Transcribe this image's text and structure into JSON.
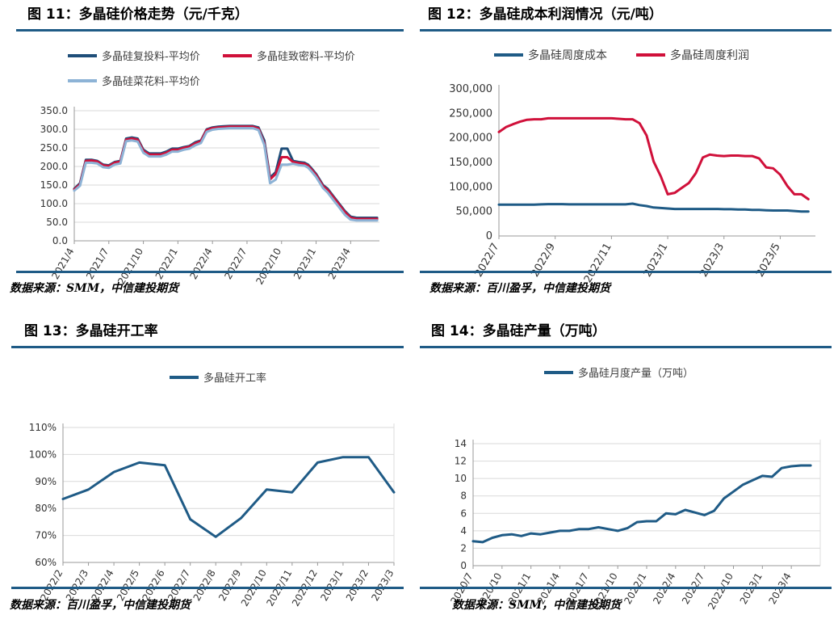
{
  "panels": [
    {
      "title": "图 11：多晶硅价格走势（元/千克）",
      "source": "数据来源：SMM，中信建投期货",
      "chart_data": {
        "type": "line",
        "ylim": [
          0,
          350
        ],
        "yticks": [
          "0.0",
          "50.0",
          "100.0",
          "150.0",
          "200.0",
          "250.0",
          "300.0",
          "350.0"
        ],
        "xticks": [
          "2021/4",
          "2021/7",
          "2021/10",
          "2022/1",
          "2022/4",
          "2022/7",
          "2022/10",
          "2023/1",
          "2023/4"
        ],
        "grid": true,
        "legend": "top",
        "series": [
          {
            "name": "多晶硅复投料-平均价",
            "color": "#1f4e79",
            "x": [
              0,
              0.5,
              1,
              1.5,
              2,
              2.5,
              3,
              3.5,
              4,
              4.5,
              5,
              5.5,
              6,
              6.5,
              7,
              7.5,
              8,
              8.5,
              9,
              9.5,
              10,
              10.5,
              11,
              11.5,
              12,
              12.5,
              13,
              13.5,
              14,
              14.5,
              15,
              15.5,
              16,
              16.5,
              17,
              17.5,
              18,
              18.5,
              19,
              19.5,
              20,
              20.3,
              20.6,
              21,
              21.3,
              21.6,
              22,
              22.5,
              23,
              23.5,
              24,
              24.5,
              25,
              25.5,
              26,
              26.3
            ],
            "values": [
              140,
              155,
              218,
              218,
              215,
              205,
              203,
              212,
              215,
              275,
              278,
              275,
              245,
              235,
              235,
              235,
              240,
              248,
              248,
              252,
              255,
              265,
              270,
              300,
              305,
              307,
              308,
              309,
              309,
              309,
              309,
              309,
              305,
              270,
              170,
              185,
              248,
              248,
              215,
              212,
              210,
              205,
              195,
              180,
              165,
              150,
              140,
              120,
              100,
              80,
              65,
              62,
              62,
              62,
              62,
              62
            ]
          },
          {
            "name": "多晶硅致密料-平均价",
            "color": "#d0103a",
            "x": [
              0,
              0.5,
              1,
              1.5,
              2,
              2.5,
              3,
              3.5,
              4,
              4.5,
              5,
              5.5,
              6,
              6.5,
              7,
              7.5,
              8,
              8.5,
              9,
              9.5,
              10,
              10.5,
              11,
              11.5,
              12,
              12.5,
              13,
              13.5,
              14,
              14.5,
              15,
              15.5,
              16,
              16.5,
              17,
              17.5,
              18,
              18.5,
              19,
              19.5,
              20,
              20.3,
              20.6,
              21,
              21.3,
              21.6,
              22,
              22.5,
              23,
              23.5,
              24,
              24.5,
              25,
              25.5,
              26,
              26.3
            ],
            "values": [
              138,
              152,
              215,
              216,
              213,
              203,
              201,
              210,
              213,
              272,
              275,
              272,
              242,
              232,
              232,
              232,
              237,
              245,
              245,
              250,
              253,
              262,
              268,
              298,
              303,
              305,
              306,
              307,
              307,
              307,
              307,
              307,
              302,
              262,
              165,
              180,
              225,
              225,
              212,
              209,
              207,
              202,
              192,
              177,
              162,
              147,
              137,
              117,
              97,
              77,
              62,
              59,
              59,
              59,
              59,
              59
            ]
          },
          {
            "name": "多晶硅菜花料-平均价",
            "color": "#8db3d6",
            "x": [
              0,
              0.5,
              1,
              1.5,
              2,
              2.5,
              3,
              3.5,
              4,
              4.5,
              5,
              5.5,
              6,
              6.5,
              7,
              7.5,
              8,
              8.5,
              9,
              9.5,
              10,
              10.5,
              11,
              11.5,
              12,
              12.5,
              13,
              13.5,
              14,
              14.5,
              15,
              15.5,
              16,
              16.5,
              17,
              17.5,
              18,
              18.5,
              19,
              19.5,
              20,
              20.3,
              20.6,
              21,
              21.3,
              21.6,
              22,
              22.5,
              23,
              23.5,
              24,
              24.5,
              25,
              25.5,
              26,
              26.3
            ],
            "values": [
              135,
              148,
              210,
              210,
              208,
              198,
              196,
              205,
              208,
              268,
              270,
              267,
              237,
              227,
              227,
              227,
              232,
              240,
              240,
              245,
              248,
              257,
              263,
              293,
              299,
              301,
              302,
              303,
              303,
              303,
              303,
              303,
              298,
              258,
              155,
              165,
              205,
              205,
              207,
              204,
              202,
              197,
              187,
              172,
              157,
              142,
              130,
              110,
              90,
              70,
              57,
              55,
              55,
              55,
              55,
              55
            ]
          }
        ]
      }
    },
    {
      "title": "图 12：多晶硅成本利润情况（元/吨）",
      "source": "数据来源：百川盈孚，中信建投期货",
      "chart_data": {
        "type": "line",
        "ylim": [
          0,
          300000
        ],
        "yticks": [
          "0",
          "50,000",
          "100,000",
          "150,000",
          "200,000",
          "250,000",
          "300,000"
        ],
        "xticks": [
          "2022/7",
          "2022/9",
          "2022/11",
          "2023/1",
          "2023/3",
          "2023/5"
        ],
        "grid": false,
        "legend": "top",
        "series": [
          {
            "name": "多晶硅周度成本",
            "color": "#1f5b86",
            "x": [
              0,
              1,
              2,
              3,
              4,
              5,
              6,
              7,
              8,
              9,
              10,
              11,
              12,
              13,
              14,
              15,
              16,
              17,
              18,
              19,
              20,
              21,
              22,
              23,
              24,
              25,
              26,
              27,
              28,
              29,
              30,
              31,
              32,
              33,
              34,
              35,
              36,
              37,
              38,
              39,
              40,
              41,
              42,
              43,
              44
            ],
            "values": [
              64000,
              64000,
              64000,
              64000,
              64000,
              64000,
              64500,
              65000,
              65000,
              65000,
              64500,
              64500,
              64500,
              64500,
              64500,
              64500,
              64500,
              64500,
              64500,
              66000,
              63000,
              61000,
              58000,
              57000,
              56000,
              55000,
              55000,
              55000,
              55000,
              55000,
              55000,
              55000,
              54500,
              54500,
              54000,
              54000,
              53000,
              53000,
              52500,
              52000,
              52000,
              52000,
              51000,
              50000,
              50000
            ]
          },
          {
            "name": "多晶硅周度利润",
            "color": "#d0103a",
            "x": [
              0,
              1,
              2,
              3,
              4,
              5,
              6,
              7,
              8,
              9,
              10,
              11,
              12,
              13,
              14,
              15,
              16,
              17,
              18,
              19,
              20,
              21,
              22,
              23,
              24,
              25,
              26,
              27,
              28,
              29,
              30,
              31,
              32,
              33,
              34,
              35,
              36,
              37,
              38,
              39,
              40,
              41,
              42,
              43,
              44
            ],
            "values": [
              212000,
              222000,
              228000,
              233000,
              237000,
              238000,
              238000,
              240000,
              240000,
              240000,
              240000,
              240000,
              240000,
              240000,
              240000,
              240000,
              240000,
              239000,
              238000,
              238000,
              230000,
              205000,
              152000,
              122000,
              85000,
              88000,
              98000,
              108000,
              128000,
              160000,
              166000,
              164000,
              163000,
              164000,
              164000,
              163000,
              163000,
              158000,
              140000,
              138000,
              125000,
              102000,
              85000,
              85000,
              75000
            ]
          }
        ]
      }
    },
    {
      "title": "图 13：多晶硅开工率",
      "source": "数据来源：百川盈孚，中信建投期货",
      "chart_data": {
        "type": "line",
        "ylim": [
          60,
          110
        ],
        "yticks": [
          "60%",
          "70%",
          "80%",
          "90%",
          "100%",
          "110%"
        ],
        "xticks": [
          "2022/2",
          "2022/3",
          "2022/4",
          "2022/5",
          "2022/6",
          "2022/7",
          "2022/8",
          "2022/9",
          "2022/10",
          "2022/11",
          "2022/12",
          "2023/1",
          "2023/2",
          "2023/3"
        ],
        "grid": true,
        "legend": "top",
        "series": [
          {
            "name": "多晶硅开工率",
            "color": "#1f5b86",
            "x": [
              0,
              1,
              2,
              3,
              4,
              5,
              6,
              7,
              8,
              9,
              10,
              11,
              12,
              13
            ],
            "values": [
              83.5,
              87,
              93.5,
              97,
              96,
              76,
              69.5,
              76.5,
              87,
              86,
              97,
              99,
              99,
              86
            ]
          }
        ]
      }
    },
    {
      "title": "图 14：多晶硅产量（万吨）",
      "source": "数据来源：SMM，中信建投期货",
      "chart_data": {
        "type": "line",
        "ylim": [
          0,
          14
        ],
        "yticks": [
          "0",
          "2",
          "4",
          "6",
          "8",
          "10",
          "12",
          "14"
        ],
        "xticks": [
          "2020/7",
          "2020/10",
          "2021/1",
          "2021/4",
          "2021/7",
          "2021/10",
          "2022/1",
          "2022/4",
          "2022/7",
          "2022/10",
          "2023/1",
          "2023/4"
        ],
        "grid": true,
        "legend": "top",
        "series": [
          {
            "name": "多晶硅月度产量（万吨）",
            "color": "#1f5b86",
            "x": [
              0,
              1,
              2,
              3,
              4,
              5,
              6,
              7,
              8,
              9,
              10,
              11,
              12,
              13,
              14,
              15,
              16,
              17,
              18,
              19,
              20,
              21,
              22,
              23,
              24,
              25,
              26,
              27,
              28,
              29,
              30,
              31,
              32,
              33,
              34,
              35
            ],
            "values": [
              2.8,
              2.7,
              3.2,
              3.5,
              3.6,
              3.4,
              3.7,
              3.6,
              3.8,
              4.0,
              4.0,
              4.2,
              4.2,
              4.4,
              4.2,
              4.0,
              4.3,
              5.0,
              5.1,
              5.1,
              6.0,
              5.9,
              6.4,
              6.1,
              5.8,
              6.3,
              7.7,
              8.5,
              9.3,
              9.8,
              10.3,
              10.2,
              11.2,
              11.4,
              11.5,
              11.5
            ]
          }
        ]
      }
    }
  ]
}
